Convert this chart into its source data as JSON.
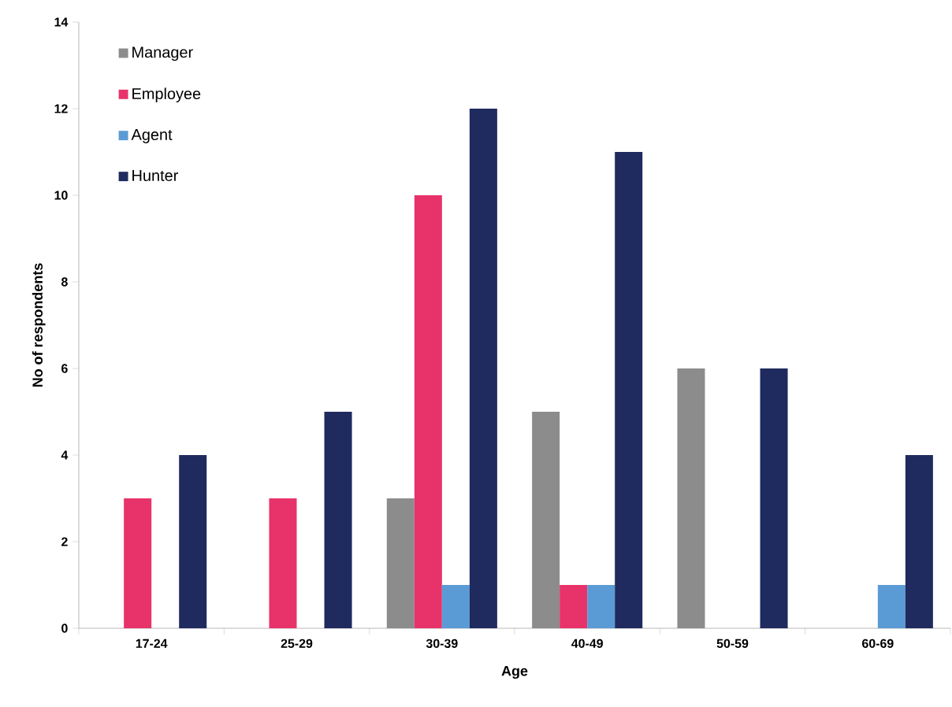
{
  "chart_data": {
    "type": "bar",
    "xlabel": "Age",
    "ylabel": "No of respondents",
    "categories": [
      "17-24",
      "25-29",
      "30-39",
      "40-49",
      "50-59",
      "60-69"
    ],
    "series": [
      {
        "name": "Manager",
        "color": "#8c8c8c",
        "values": [
          0,
          0,
          3,
          5,
          6,
          0
        ]
      },
      {
        "name": "Employee",
        "color": "#e8336a",
        "values": [
          3,
          3,
          10,
          1,
          0,
          0
        ]
      },
      {
        "name": "Agent",
        "color": "#5b9bd5",
        "values": [
          0,
          0,
          1,
          1,
          0,
          1
        ]
      },
      {
        "name": "Hunter",
        "color": "#1f2a5e",
        "values": [
          4,
          5,
          12,
          11,
          6,
          4
        ]
      }
    ],
    "ylim": [
      0,
      14
    ],
    "yticks": [
      0,
      2,
      4,
      6,
      8,
      10,
      12,
      14
    ],
    "grid": false,
    "legend": "top left"
  }
}
